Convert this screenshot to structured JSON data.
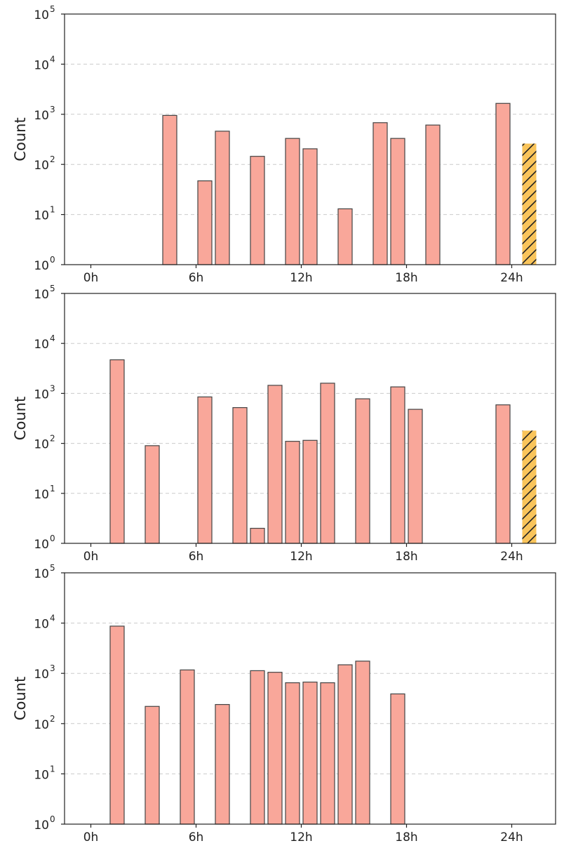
{
  "chart_data": [
    {
      "type": "bar",
      "ylabel": "Count",
      "xlabel": "",
      "yscale": "log",
      "ylim": [
        1,
        100000
      ],
      "xlim": [
        -1.5,
        26.5
      ],
      "xticks": [
        {
          "value": 0,
          "label": "0h"
        },
        {
          "value": 6,
          "label": "6h"
        },
        {
          "value": 12,
          "label": "12h"
        },
        {
          "value": 18,
          "label": "18h"
        },
        {
          "value": 24,
          "label": "24h"
        }
      ],
      "yticks": [
        {
          "value": 1,
          "base": "10",
          "exp": "0"
        },
        {
          "value": 10,
          "base": "10",
          "exp": "1"
        },
        {
          "value": 100,
          "base": "10",
          "exp": "2"
        },
        {
          "value": 1000,
          "base": "10",
          "exp": "3"
        },
        {
          "value": 10000,
          "base": "10",
          "exp": "4"
        },
        {
          "value": 100000,
          "base": "10",
          "exp": "5"
        }
      ],
      "grid": "y dashed",
      "bars": [
        {
          "x": 4.5,
          "value": 950
        },
        {
          "x": 6.5,
          "value": 47
        },
        {
          "x": 7.5,
          "value": 460
        },
        {
          "x": 9.5,
          "value": 145
        },
        {
          "x": 11.5,
          "value": 330
        },
        {
          "x": 12.5,
          "value": 205
        },
        {
          "x": 14.5,
          "value": 13
        },
        {
          "x": 16.5,
          "value": 680
        },
        {
          "x": 17.5,
          "value": 330
        },
        {
          "x": 19.5,
          "value": 610
        },
        {
          "x": 23.5,
          "value": 1650
        }
      ],
      "highlight_bar": {
        "x": 25.0,
        "value": 260,
        "style": "hatched"
      },
      "colors": {
        "bar": "#f9a79a",
        "highlight": "#f9c45a",
        "edge": "#444444"
      }
    },
    {
      "type": "bar",
      "ylabel": "Count",
      "xlabel": "",
      "yscale": "log",
      "ylim": [
        1,
        100000
      ],
      "xlim": [
        -1.5,
        26.5
      ],
      "xticks": [
        {
          "value": 0,
          "label": "0h"
        },
        {
          "value": 6,
          "label": "6h"
        },
        {
          "value": 12,
          "label": "12h"
        },
        {
          "value": 18,
          "label": "18h"
        },
        {
          "value": 24,
          "label": "24h"
        }
      ],
      "yticks": [
        {
          "value": 1,
          "base": "10",
          "exp": "0"
        },
        {
          "value": 10,
          "base": "10",
          "exp": "1"
        },
        {
          "value": 100,
          "base": "10",
          "exp": "2"
        },
        {
          "value": 1000,
          "base": "10",
          "exp": "3"
        },
        {
          "value": 10000,
          "base": "10",
          "exp": "4"
        },
        {
          "value": 100000,
          "base": "10",
          "exp": "5"
        }
      ],
      "grid": "y dashed",
      "bars": [
        {
          "x": 1.5,
          "value": 4700
        },
        {
          "x": 3.5,
          "value": 90
        },
        {
          "x": 6.5,
          "value": 850
        },
        {
          "x": 8.5,
          "value": 520
        },
        {
          "x": 9.5,
          "value": 2
        },
        {
          "x": 10.5,
          "value": 1450
        },
        {
          "x": 11.5,
          "value": 110
        },
        {
          "x": 12.5,
          "value": 115
        },
        {
          "x": 13.5,
          "value": 1600
        },
        {
          "x": 15.5,
          "value": 780
        },
        {
          "x": 17.5,
          "value": 1350
        },
        {
          "x": 18.5,
          "value": 480
        },
        {
          "x": 23.5,
          "value": 590
        }
      ],
      "highlight_bar": {
        "x": 25.0,
        "value": 180,
        "style": "hatched"
      },
      "colors": {
        "bar": "#f9a79a",
        "highlight": "#f9c45a",
        "edge": "#444444"
      }
    },
    {
      "type": "bar",
      "ylabel": "Count",
      "xlabel": "",
      "yscale": "log",
      "ylim": [
        1,
        100000
      ],
      "xlim": [
        -1.5,
        26.5
      ],
      "xticks": [
        {
          "value": 0,
          "label": "0h"
        },
        {
          "value": 6,
          "label": "6h"
        },
        {
          "value": 12,
          "label": "12h"
        },
        {
          "value": 18,
          "label": "18h"
        },
        {
          "value": 24,
          "label": "24h"
        }
      ],
      "yticks": [
        {
          "value": 1,
          "base": "10",
          "exp": "0"
        },
        {
          "value": 10,
          "base": "10",
          "exp": "1"
        },
        {
          "value": 100,
          "base": "10",
          "exp": "2"
        },
        {
          "value": 1000,
          "base": "10",
          "exp": "3"
        },
        {
          "value": 10000,
          "base": "10",
          "exp": "4"
        },
        {
          "value": 100000,
          "base": "10",
          "exp": "5"
        }
      ],
      "grid": "y dashed",
      "bars": [
        {
          "x": 1.5,
          "value": 8700
        },
        {
          "x": 3.5,
          "value": 220
        },
        {
          "x": 5.5,
          "value": 1170
        },
        {
          "x": 7.5,
          "value": 240
        },
        {
          "x": 9.5,
          "value": 1130
        },
        {
          "x": 10.5,
          "value": 1050
        },
        {
          "x": 11.5,
          "value": 650
        },
        {
          "x": 12.5,
          "value": 670
        },
        {
          "x": 13.5,
          "value": 650
        },
        {
          "x": 14.5,
          "value": 1480
        },
        {
          "x": 15.5,
          "value": 1750
        },
        {
          "x": 17.5,
          "value": 390
        }
      ],
      "highlight_bar": null,
      "colors": {
        "bar": "#f9a79a",
        "highlight": "#f9c45a",
        "edge": "#444444"
      }
    }
  ]
}
